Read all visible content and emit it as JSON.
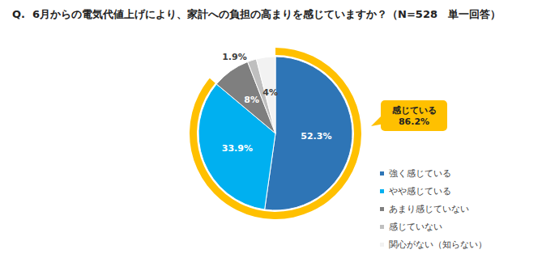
{
  "chart_data": {
    "type": "pie",
    "title": "Q.  6月からの電気代値上げにより、家計への負担の高まりを感じていますか？（N=528　単一回答）",
    "categories": [
      "強く感じている",
      "やや感じている",
      "あまり感じていない",
      "感じていない",
      "関心がない（知らない）"
    ],
    "values": [
      52.3,
      33.9,
      8,
      1.9,
      4
    ],
    "value_labels": [
      "52.3%",
      "33.9%",
      "8%",
      "1.9%",
      "4%"
    ],
    "colors": [
      "#2e75b6",
      "#00b0f0",
      "#7f7f7f",
      "#bfbfbf",
      "#f2f2f2"
    ],
    "data_labels": true,
    "legend": "bottom-right",
    "annotation": {
      "text": "感じている",
      "value": 86.2,
      "value_label": "86.2%",
      "color": "#ffc000"
    }
  }
}
